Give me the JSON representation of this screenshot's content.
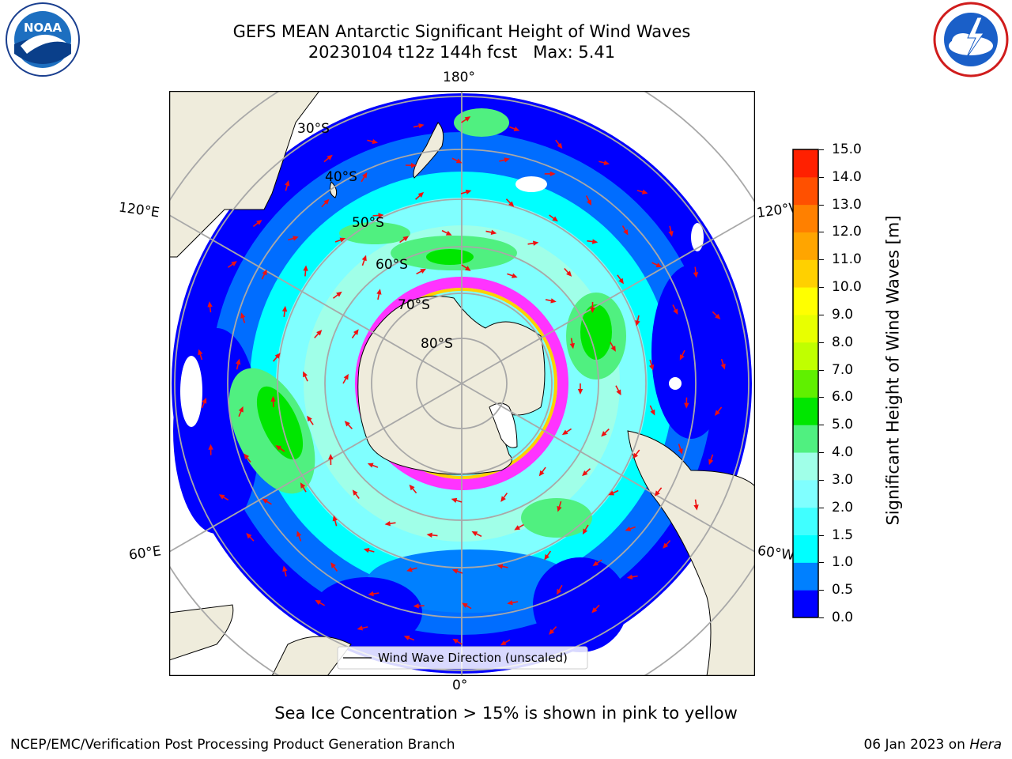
{
  "title_line1": "GEFS MEAN Antarctic Significant Height of Wind Waves",
  "title_line2": "20230104 t12z 144h fcst   Max: 5.41",
  "logos": {
    "left": {
      "text": "NOAA",
      "ring_text": "NATIONAL OCEANIC AND ATMOSPHERIC ADMINISTRATION · U.S. DEPARTMENT OF COMMERCE"
    },
    "right": {
      "ring_text": "NATIONAL WEATHER SERVICE"
    }
  },
  "map": {
    "projection": "south-polar-stereographic",
    "longitude_labels": {
      "top": "180°",
      "bottom": "0°",
      "left_upper": "120°E",
      "left_lower": "60°E",
      "right_upper": "120°W",
      "right_lower": "60°W"
    },
    "latitude_labels": [
      "30°S",
      "40°S",
      "50°S",
      "60°S",
      "70°S",
      "80°S"
    ],
    "legend_label": "Wind Wave Direction (unscaled)",
    "land_color": "#efecdc",
    "arrow_color": "#ee1111"
  },
  "colorbar": {
    "label": "Significant Height of Wind Waves [m]",
    "tick_labels": [
      "0.0",
      "0.5",
      "1.0",
      "1.5",
      "2.0",
      "3.0",
      "4.0",
      "5.0",
      "6.0",
      "7.0",
      "8.0",
      "9.0",
      "10.0",
      "11.0",
      "12.0",
      "13.0",
      "14.0",
      "15.0"
    ],
    "colors": [
      "#0000ff",
      "#0080ff",
      "#00ffff",
      "#40ffff",
      "#80ffff",
      "#a0ffe8",
      "#50f080",
      "#00e600",
      "#60f000",
      "#c0ff00",
      "#e8ff00",
      "#ffff00",
      "#ffd000",
      "#ffa500",
      "#ff8000",
      "#ff5000",
      "#ff2000"
    ]
  },
  "note": "Sea Ice Concentration > 15% is shown in pink to yellow",
  "footer_left": "NCEP/EMC/Verification Post Processing Product Generation Branch",
  "footer_right_date": "06 Jan 2023 on ",
  "footer_right_machine": "Hera"
}
